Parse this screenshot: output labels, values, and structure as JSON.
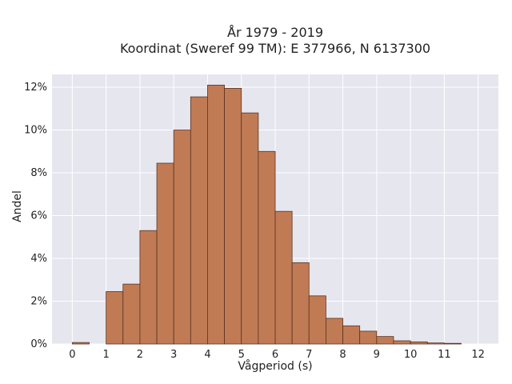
{
  "chart_data": {
    "type": "bar",
    "title_lines": [
      "År 1979 - 2019",
      "Koordinat (Sweref 99 TM): E 377966, N 6137300"
    ],
    "xlabel": "Vågperiod (s)",
    "ylabel": "Andel",
    "xlim": [
      -0.6,
      12.6
    ],
    "ylim": [
      0,
      12.6
    ],
    "x_ticks": [
      0,
      1,
      2,
      3,
      4,
      5,
      6,
      7,
      8,
      9,
      10,
      11,
      12
    ],
    "y_ticks": [
      0,
      2,
      4,
      6,
      8,
      10,
      12
    ],
    "y_tick_labels": [
      "0%",
      "2%",
      "4%",
      "6%",
      "8%",
      "10%",
      "12%"
    ],
    "bin_width": 0.5,
    "bins": [
      {
        "x": 0.0,
        "y": 0.07
      },
      {
        "x": 1.0,
        "y": 2.45
      },
      {
        "x": 1.5,
        "y": 2.8
      },
      {
        "x": 2.0,
        "y": 5.3
      },
      {
        "x": 2.5,
        "y": 8.45
      },
      {
        "x": 3.0,
        "y": 10.0
      },
      {
        "x": 3.5,
        "y": 11.55
      },
      {
        "x": 4.0,
        "y": 12.1
      },
      {
        "x": 4.5,
        "y": 11.95
      },
      {
        "x": 5.0,
        "y": 10.8
      },
      {
        "x": 5.5,
        "y": 9.0
      },
      {
        "x": 6.0,
        "y": 6.2
      },
      {
        "x": 6.5,
        "y": 3.8
      },
      {
        "x": 7.0,
        "y": 2.25
      },
      {
        "x": 7.5,
        "y": 1.2
      },
      {
        "x": 8.0,
        "y": 0.85
      },
      {
        "x": 8.5,
        "y": 0.6
      },
      {
        "x": 9.0,
        "y": 0.35
      },
      {
        "x": 9.5,
        "y": 0.15
      },
      {
        "x": 10.0,
        "y": 0.1
      },
      {
        "x": 10.5,
        "y": 0.05
      },
      {
        "x": 11.0,
        "y": 0.03
      }
    ],
    "bar_color": "#c07b55",
    "bar_edge_color": "#5a3320",
    "plot_background": "#e6e6ef",
    "grid_color": "#ffffff",
    "grid": true
  }
}
